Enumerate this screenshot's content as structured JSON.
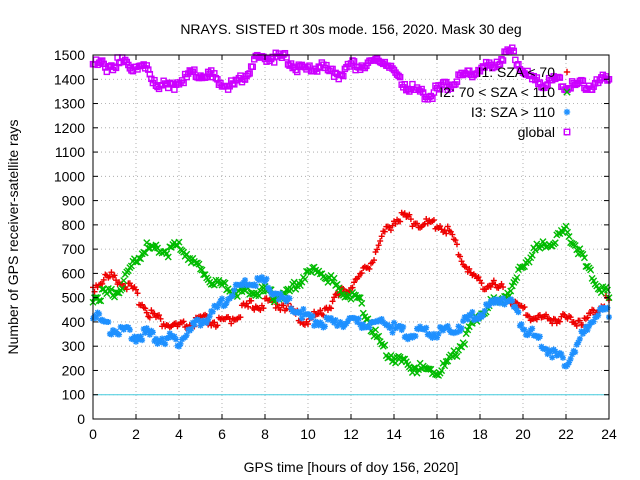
{
  "chart_data": {
    "type": "scatter",
    "title": "NRAYS. SISTED rt 30s mode. 156, 2020. Mask 30 deg",
    "xlabel": "GPS time [hours of doy 156, 2020]",
    "ylabel": "Number of GPS receiver-satellite rays",
    "xlim": [
      0,
      24
    ],
    "ylim": [
      0,
      1500
    ],
    "xticks": [
      0,
      2,
      4,
      6,
      8,
      10,
      12,
      14,
      16,
      18,
      20,
      22,
      24
    ],
    "yticks": [
      0,
      100,
      200,
      300,
      400,
      500,
      600,
      700,
      800,
      900,
      1000,
      1100,
      1200,
      1300,
      1400,
      1500
    ],
    "grid": true,
    "legend_position": "top-right",
    "reference_line": {
      "y": 100,
      "color": "#44ccdd"
    },
    "series": [
      {
        "name": "I1: SZA < 70",
        "color": "#ee0000",
        "marker": "plus",
        "x": [
          0,
          0.5,
          1,
          1.5,
          2,
          2.5,
          3,
          3.5,
          4,
          4.5,
          5,
          5.5,
          6,
          6.5,
          7,
          7.5,
          8,
          8.5,
          9,
          9.5,
          10,
          10.5,
          11,
          11.5,
          12,
          12.5,
          13,
          13.5,
          14,
          14.5,
          15,
          15.5,
          16,
          16.5,
          17,
          17.5,
          18,
          18.5,
          19,
          19.5,
          20,
          20.5,
          21,
          21.5,
          22,
          22.5,
          23,
          23.5,
          24
        ],
        "values": [
          530,
          565,
          575,
          545,
          500,
          440,
          400,
          375,
          365,
          375,
          395,
          390,
          380,
          405,
          440,
          460,
          460,
          470,
          450,
          410,
          390,
          420,
          460,
          500,
          540,
          580,
          650,
          740,
          810,
          820,
          800,
          790,
          790,
          770,
          680,
          590,
          550,
          540,
          520,
          470,
          430,
          410,
          400,
          405,
          400,
          395,
          400,
          450,
          490
        ]
      },
      {
        "name": "I2: 70 < SZA < 110",
        "color": "#00bb00",
        "marker": "cross",
        "x": [
          0,
          0.5,
          1,
          1.5,
          2,
          2.5,
          3,
          3.5,
          4,
          4.5,
          5,
          5.5,
          6,
          6.5,
          7,
          7.5,
          8,
          8.5,
          9,
          9.5,
          10,
          10.5,
          11,
          11.5,
          12,
          12.5,
          13,
          13.5,
          14,
          14.5,
          15,
          15.5,
          16,
          16.5,
          17,
          17.5,
          18,
          18.5,
          19,
          19.5,
          20,
          20.5,
          21,
          21.5,
          22,
          22.5,
          23,
          23.5,
          24
        ],
        "values": [
          490,
          500,
          510,
          560,
          650,
          690,
          680,
          680,
          700,
          660,
          600,
          560,
          530,
          520,
          510,
          520,
          510,
          490,
          500,
          550,
          590,
          600,
          560,
          520,
          500,
          460,
          360,
          280,
          240,
          210,
          200,
          190,
          180,
          210,
          280,
          350,
          420,
          460,
          480,
          530,
          620,
          680,
          700,
          730,
          760,
          700,
          600,
          540,
          500
        ]
      },
      {
        "name": "I3: SZA > 110",
        "color": "#1e90ff",
        "marker": "star",
        "x": [
          0,
          0.5,
          1,
          1.5,
          2,
          2.5,
          3,
          3.5,
          4,
          4.5,
          5,
          5.5,
          6,
          6.5,
          7,
          7.5,
          8,
          8.5,
          9,
          9.5,
          10,
          10.5,
          11,
          11.5,
          12,
          12.5,
          13,
          13.5,
          14,
          14.5,
          15,
          15.5,
          16,
          16.5,
          17,
          17.5,
          18,
          18.5,
          19,
          19.5,
          20,
          20.5,
          21,
          21.5,
          22,
          22.5,
          23,
          23.5,
          24
        ],
        "values": [
          420,
          380,
          350,
          350,
          330,
          340,
          320,
          320,
          310,
          350,
          390,
          420,
          460,
          510,
          540,
          550,
          550,
          510,
          470,
          440,
          400,
          390,
          380,
          390,
          390,
          380,
          380,
          390,
          360,
          340,
          340,
          350,
          340,
          350,
          370,
          400,
          420,
          450,
          490,
          460,
          370,
          330,
          290,
          250,
          220,
          290,
          370,
          430,
          420
        ]
      },
      {
        "name": "global",
        "color": "#cc00ff",
        "marker": "square",
        "x": [
          0,
          0.5,
          1,
          1.5,
          2,
          2.5,
          3,
          3.5,
          4,
          4.5,
          5,
          5.5,
          6,
          6.5,
          7,
          7.5,
          8,
          8.5,
          9,
          9.5,
          10,
          10.5,
          11,
          11.5,
          12,
          12.5,
          13,
          13.5,
          14,
          14.5,
          15,
          15.5,
          16,
          16.5,
          17,
          17.5,
          18,
          18.5,
          19,
          19.5,
          20,
          20.5,
          21,
          21.5,
          22,
          22.5,
          23,
          23.5,
          24
        ],
        "values": [
          1450,
          1440,
          1450,
          1460,
          1440,
          1420,
          1370,
          1350,
          1380,
          1400,
          1420,
          1400,
          1370,
          1360,
          1400,
          1460,
          1480,
          1480,
          1470,
          1440,
          1420,
          1440,
          1420,
          1410,
          1440,
          1450,
          1460,
          1470,
          1410,
          1370,
          1340,
          1320,
          1340,
          1360,
          1390,
          1410,
          1430,
          1440,
          1480,
          1500,
          1420,
          1380,
          1370,
          1380,
          1360,
          1360,
          1360,
          1370,
          1400
        ]
      }
    ]
  }
}
